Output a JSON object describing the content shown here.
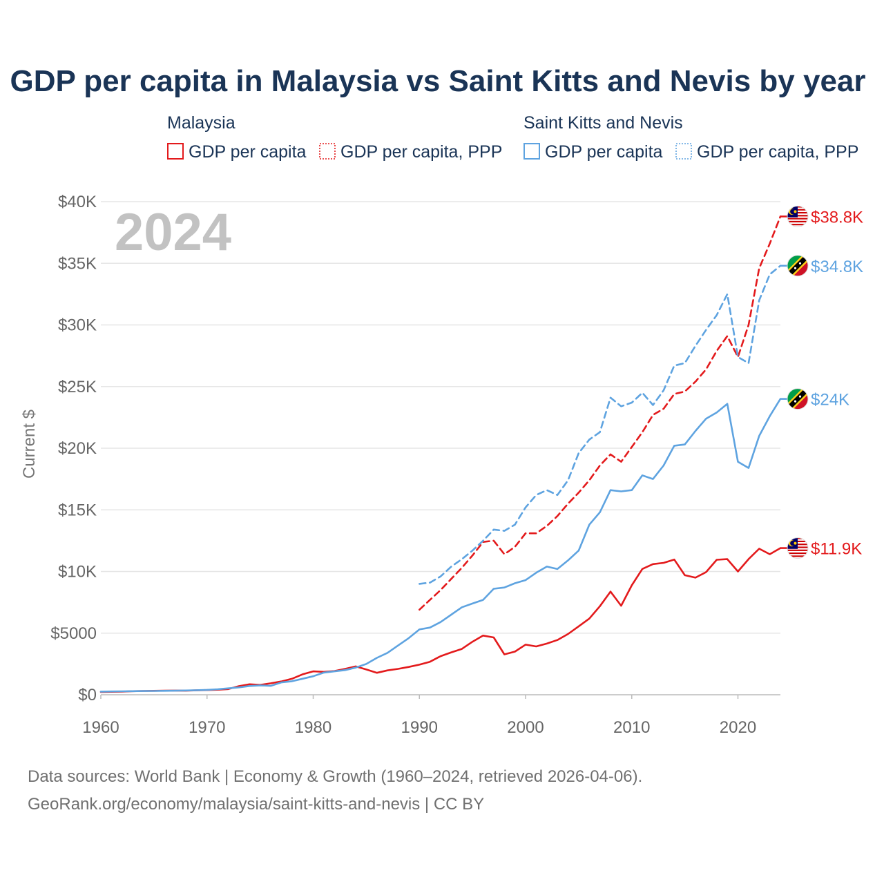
{
  "chart_data": {
    "type": "line",
    "title": "GDP per capita in Malaysia vs Saint Kitts and Nevis by year",
    "ylabel": "Current $",
    "xlabel": "",
    "xlim": [
      1960,
      2024
    ],
    "ylim": [
      0,
      40000
    ],
    "x_ticks": [
      "1960",
      "1970",
      "1980",
      "1990",
      "2000",
      "2010",
      "2020"
    ],
    "y_ticks": [
      "$0",
      "$5000",
      "$10K",
      "$15K",
      "$20K",
      "$25K",
      "$30K",
      "$35K",
      "$40K"
    ],
    "year_label": "2024",
    "legend": {
      "groups": [
        {
          "name": "Malaysia",
          "items": [
            "GDP per capita",
            "GDP per capita, PPP"
          ]
        },
        {
          "name": "Saint Kitts and Nevis",
          "items": [
            "GDP per capita",
            "GDP per capita, PPP"
          ]
        }
      ]
    },
    "colors": {
      "malaysia": "#e31a1c",
      "skn": "#5ea3e0"
    },
    "series": [
      {
        "name": "Malaysia GDP per capita",
        "country": "Malaysia",
        "style": "solid",
        "end_label": "$11.9K",
        "start_year": 1960,
        "values": [
          230,
          240,
          250,
          290,
          310,
          320,
          330,
          340,
          330,
          360,
          380,
          410,
          460,
          700,
          850,
          800,
          930,
          1080,
          1300,
          1660,
          1900,
          1860,
          1920,
          2100,
          2300,
          2050,
          1780,
          1980,
          2100,
          2260,
          2440,
          2680,
          3130,
          3440,
          3720,
          4300,
          4800,
          4650,
          3280,
          3500,
          4070,
          3920,
          4150,
          4440,
          4930,
          5550,
          6180,
          7180,
          8370,
          7220,
          8880,
          10210,
          10600,
          10700,
          10970,
          9700,
          9500,
          9950,
          10950,
          11000,
          10000,
          11000,
          11850,
          11400,
          11900
        ]
      },
      {
        "name": "Malaysia GDP per capita, PPP",
        "country": "Malaysia",
        "style": "dashed",
        "end_label": "$38.8K",
        "start_year": 1990,
        "values": [
          6900,
          7700,
          8500,
          9400,
          10300,
          11300,
          12400,
          12500,
          11400,
          12000,
          13100,
          13100,
          13700,
          14500,
          15500,
          16400,
          17400,
          18600,
          19500,
          18900,
          20100,
          21300,
          22700,
          23200,
          24400,
          24600,
          25400,
          26400,
          27900,
          29100,
          27400,
          30000,
          34600,
          36600,
          38800
        ]
      },
      {
        "name": "Saint Kitts and Nevis GDP per capita",
        "country": "Saint Kitts and Nevis",
        "style": "solid",
        "end_label": "$24K",
        "start_year": 1960,
        "values": [
          260,
          270,
          280,
          290,
          300,
          310,
          320,
          330,
          350,
          370,
          400,
          450,
          520,
          600,
          710,
          760,
          720,
          1000,
          1100,
          1300,
          1500,
          1800,
          1900,
          2000,
          2200,
          2500,
          3000,
          3400,
          4000,
          4600,
          5300,
          5450,
          5900,
          6500,
          7100,
          7400,
          7700,
          8600,
          8700,
          9050,
          9300,
          9900,
          10400,
          10200,
          10900,
          11700,
          13800,
          14800,
          16600,
          16500,
          16600,
          17800,
          17500,
          18600,
          20200,
          20300,
          21400,
          22400,
          22900,
          23600,
          18900,
          18400,
          21000,
          22600,
          24000
        ]
      },
      {
        "name": "Saint Kitts and Nevis GDP per capita, PPP",
        "country": "Saint Kitts and Nevis",
        "style": "dashed",
        "end_label": "$34.8K",
        "start_year": 1990,
        "values": [
          9000,
          9100,
          9600,
          10400,
          11000,
          11700,
          12500,
          13400,
          13300,
          13800,
          15200,
          16200,
          16600,
          16200,
          17400,
          19600,
          20700,
          21300,
          24100,
          23400,
          23700,
          24500,
          23500,
          24700,
          26700,
          26900,
          28300,
          29600,
          30800,
          32500,
          27400,
          26900,
          32000,
          34100,
          34800
        ]
      }
    ],
    "source": {
      "line1": "Data sources: World Bank | Economy & Growth (1960–2024, retrieved 2026-04-06).",
      "line2": "GeoRank.org/economy/malaysia/saint-kitts-and-nevis | CC BY"
    }
  }
}
